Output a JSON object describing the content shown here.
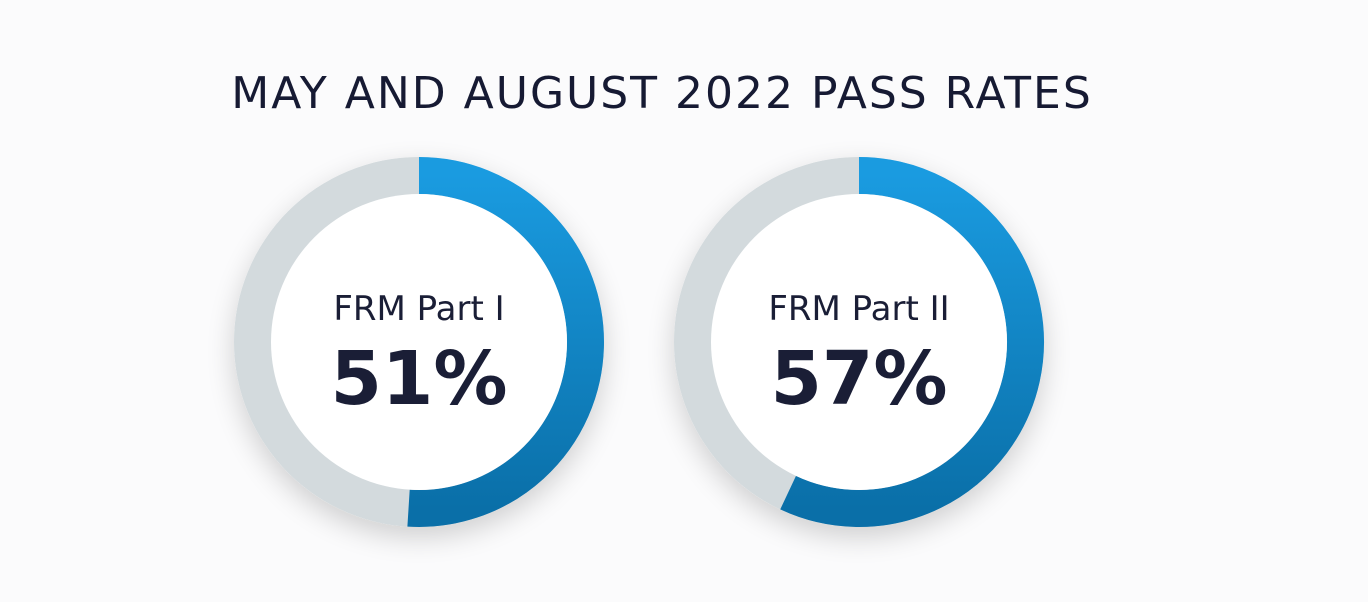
{
  "chart_data": {
    "type": "pie",
    "title": "MAY AND AUGUST 2022 PASS RATES",
    "series": [
      {
        "name": "FRM Part I",
        "value": 51,
        "value_label": "51%"
      },
      {
        "name": "FRM Part II",
        "value": 57,
        "value_label": "57%"
      }
    ],
    "colors": {
      "pass_arc_start": "#1a9be0",
      "pass_arc_end": "#0a6fa8",
      "remainder_ring": "#d3dadd",
      "inner_disc": "#ffffff",
      "text": "#1a1e36"
    },
    "legend": "none",
    "grid": false
  }
}
